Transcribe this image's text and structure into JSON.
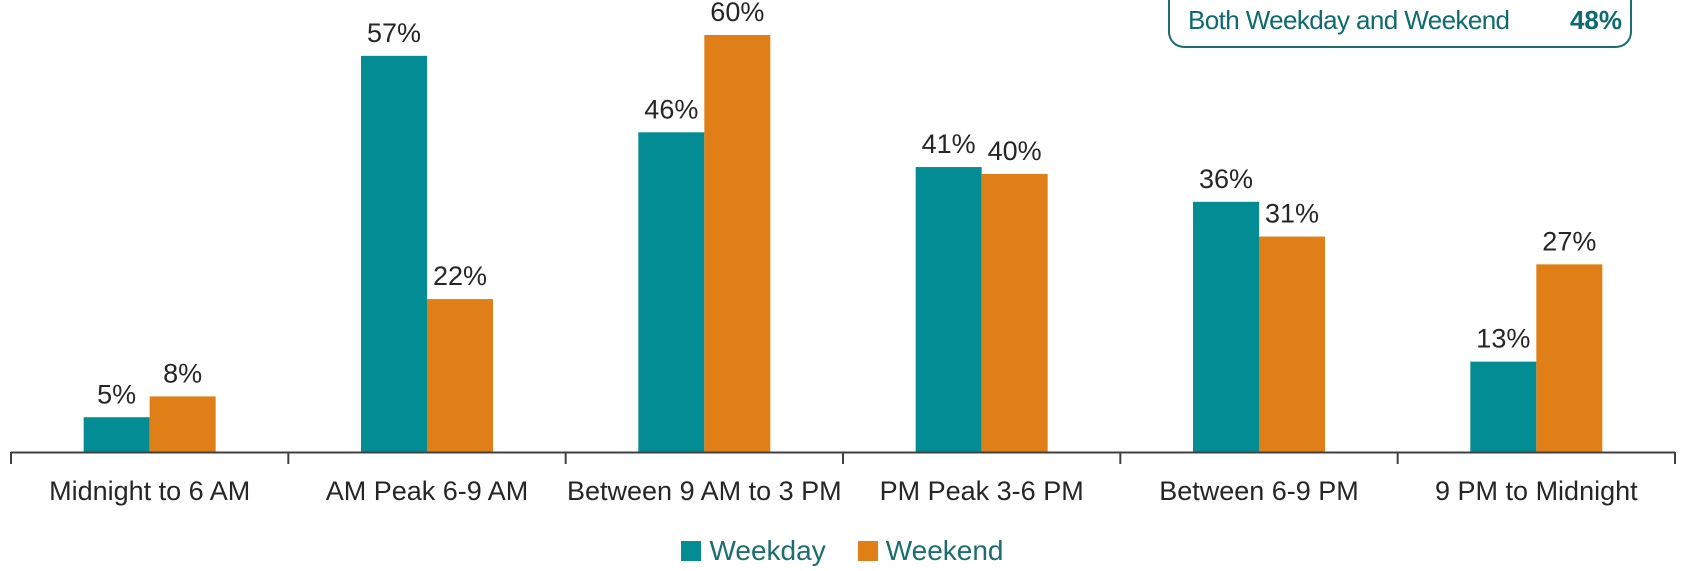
{
  "chart_data": {
    "type": "bar",
    "categories": [
      "Midnight to 6 AM",
      "AM Peak 6-9 AM",
      "Between 9 AM to 3 PM",
      "PM Peak 3-6 PM",
      "Between 6-9 PM",
      "9 PM  to Midnight"
    ],
    "series": [
      {
        "name": "Weekday",
        "values": [
          5,
          57,
          46,
          41,
          36,
          13
        ],
        "labels": [
          "5%",
          "57%",
          "46%",
          "41%",
          "36%",
          "13%"
        ],
        "color": "#048c94"
      },
      {
        "name": "Weekend",
        "values": [
          8,
          22,
          60,
          40,
          31,
          27
        ],
        "labels": [
          "8%",
          "22%",
          "60%",
          "40%",
          "31%",
          "27%"
        ],
        "color": "#e07f17"
      }
    ],
    "ylim": [
      0,
      64
    ],
    "grid": false,
    "legend": "bottom",
    "annotation": {
      "label": "Both Weekday and Weekend",
      "value": "48%"
    }
  },
  "colors": {
    "axis": "#404040",
    "label_text": "#262626",
    "callout": "#0b6b6e"
  }
}
